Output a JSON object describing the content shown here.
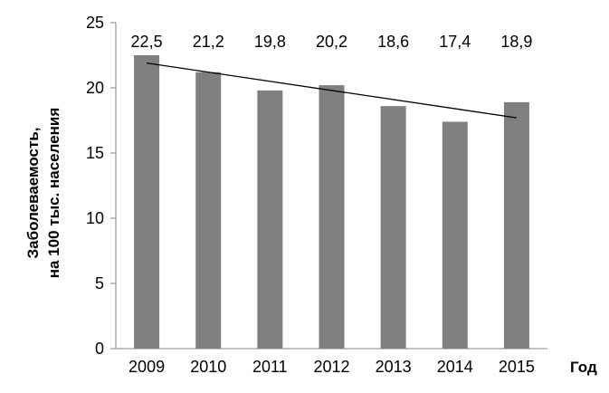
{
  "chart_data": {
    "type": "bar",
    "categories": [
      "2009",
      "2010",
      "2011",
      "2012",
      "2013",
      "2014",
      "2015"
    ],
    "values": [
      22.5,
      21.2,
      19.8,
      20.2,
      18.6,
      17.4,
      18.9
    ],
    "value_labels": [
      "22,5",
      "21,2",
      "19,8",
      "20,2",
      "18,6",
      "17,4",
      "18,9"
    ],
    "xlabel": "Год",
    "ylabel_lines": [
      "Заболеваемость,",
      "на 100 тыс. населения"
    ],
    "ylim": [
      0,
      25
    ],
    "yticks": [
      "0",
      "5",
      "10",
      "15",
      "20",
      "25"
    ],
    "trendline": "linear",
    "grid": false,
    "bar_color": "#7f7f7f",
    "trend_color": "#000000"
  }
}
